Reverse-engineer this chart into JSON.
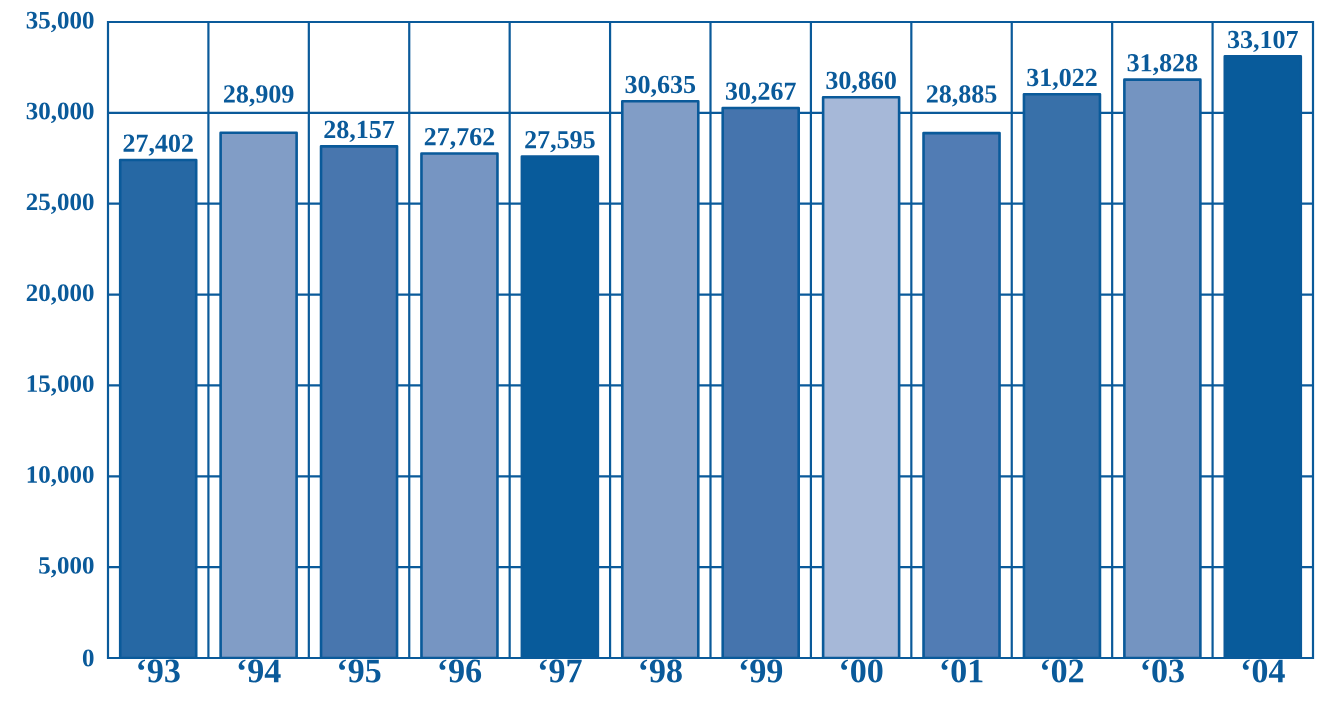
{
  "chart_data": {
    "type": "bar",
    "categories": [
      "‘93",
      "‘94",
      "‘95",
      "‘96",
      "‘97",
      "‘98",
      "‘99",
      "‘00",
      "‘01",
      "‘02",
      "‘03",
      "‘04"
    ],
    "values": [
      27402,
      28909,
      28157,
      27762,
      27595,
      30635,
      30267,
      30860,
      28885,
      31022,
      31828,
      33107
    ],
    "value_labels": [
      "27,402",
      "28,909",
      "28,157",
      "27,762",
      "27,595",
      "30,635",
      "30,267",
      "30,860",
      "28,885",
      "31,022",
      "31,828",
      "33,107"
    ],
    "colors": [
      "#2668a4",
      "#819dc6",
      "#4876ae",
      "#7695c2",
      "#085b9b",
      "#819dc6",
      "#4574ad",
      "#a6b8d8",
      "#517cb4",
      "#3870a9",
      "#7494c1",
      "#085b9b"
    ],
    "ylim": [
      0,
      35000
    ],
    "yticks": [
      {
        "value": 0,
        "label": "0"
      },
      {
        "value": 5000,
        "label": "5,000"
      },
      {
        "value": 10000,
        "label": "10,000"
      },
      {
        "value": 15000,
        "label": "15,000"
      },
      {
        "value": 20000,
        "label": "20,000"
      },
      {
        "value": 25000,
        "label": "25,000"
      },
      {
        "value": 30000,
        "label": "30,000"
      },
      {
        "value": 35000,
        "label": "35,000"
      }
    ],
    "grid": true
  }
}
